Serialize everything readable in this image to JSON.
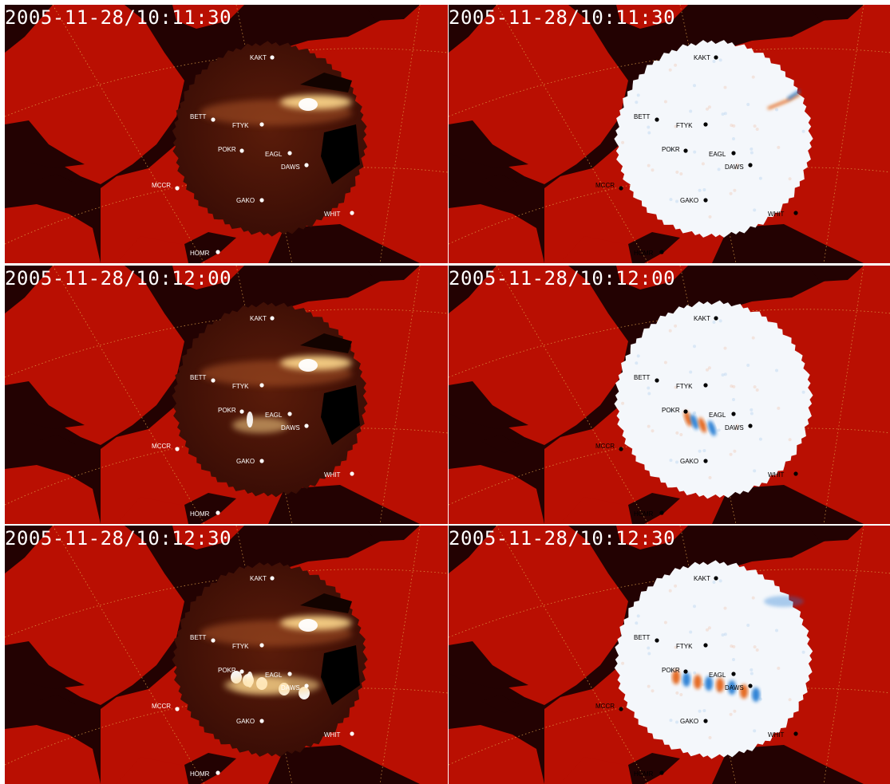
{
  "colors": {
    "ocean": "#230202",
    "land": "#b90f02",
    "graticule": "#e0a24a",
    "asi_disk_dark": "#3a0d05",
    "aurora": "#ffd98c",
    "diff_background": "#f4f7fb",
    "diff_positive": "#e35d10",
    "diff_negative": "#1e78d2",
    "white_marker": "#ffffff",
    "black_marker": "#000000"
  },
  "panels": [
    {
      "time": "2005-11-28/10:11:30",
      "kind": "asi",
      "arc_level": 0
    },
    {
      "time": "2005-11-28/10:11:30",
      "kind": "diff",
      "arc_level": 0
    },
    {
      "time": "2005-11-28/10:12:00",
      "kind": "asi",
      "arc_level": 1
    },
    {
      "time": "2005-11-28/10:12:00",
      "kind": "diff",
      "arc_level": 1
    },
    {
      "time": "2005-11-28/10:12:30",
      "kind": "asi",
      "arc_level": 2
    },
    {
      "time": "2005-11-28/10:12:30",
      "kind": "diff",
      "arc_level": 2
    }
  ],
  "stations": [
    "KAKT",
    "BETT",
    "FTYK",
    "POKR",
    "EAGL",
    "DAWS",
    "MCCR",
    "GAKO",
    "WHIT",
    "HOMR"
  ],
  "marker_icon": "station-dot-icon"
}
